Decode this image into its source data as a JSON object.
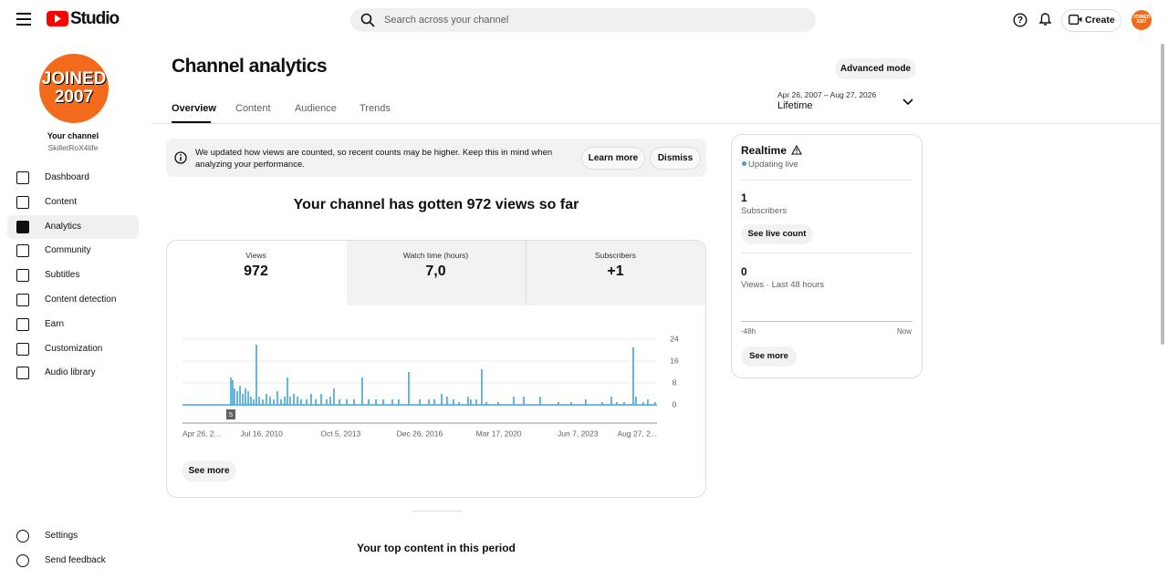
{
  "header": {
    "logo": "Studio",
    "search_placeholder": "Search across your channel",
    "create": "Create"
  },
  "sidebar": {
    "avatar_lines": [
      "JOINED",
      "2007"
    ],
    "channel_label": "Your channel",
    "channel_name": "SkilletRoX4life",
    "nav": [
      "Dashboard",
      "Content",
      "Analytics",
      "Community",
      "Subtitles",
      "Content detection",
      "Earn",
      "Customization",
      "Audio library"
    ],
    "footer": [
      "Settings",
      "Send feedback"
    ]
  },
  "page": {
    "title": "Channel analytics",
    "advanced": "Advanced mode",
    "tabs": [
      "Overview",
      "Content",
      "Audience",
      "Trends"
    ],
    "date_range": "Apr 26, 2007 – Aug 27, 2026",
    "period": "Lifetime"
  },
  "notice": {
    "text_lines": [
      "We updated how views are counted, so recent counts may be higher. Keep this in mind when",
      "analyzing your performance."
    ],
    "learn_more": "Learn more",
    "dismiss": "Dismiss"
  },
  "headline": "Your channel has gotten 972 views so far",
  "metrics": [
    {
      "label": "Views",
      "value": "972"
    },
    {
      "label": "Watch time (hours)",
      "value": "7,0"
    },
    {
      "label": "Subscribers",
      "value": "+1"
    }
  ],
  "chart_data": {
    "type": "bar",
    "color": "#3ea6d8",
    "grid": true,
    "annotation": "5",
    "x": [
      720,
      747,
      774,
      815,
      856,
      896,
      937,
      978,
      1019,
      1059,
      1100,
      1141,
      1195,
      1249,
      1304,
      1358,
      1412,
      1467,
      1521,
      1562,
      1602,
      1657,
      1711,
      1765,
      1847,
      1915,
      1983,
      2064,
      2146,
      2200,
      2254,
      2336,
      2444,
      2553,
      2675,
      2770,
      2879,
      2988,
      3123,
      3218,
      3368,
      3531,
      3667,
      3748,
      3857,
      3938,
      4033,
      4115,
      4251,
      4291,
      4373,
      4454,
      4522,
      4699,
      4930,
      5079,
      5323,
      5595,
      5785,
      6002,
      6247,
      6383,
      6464,
      6573,
      6709,
      6749,
      6858,
      6926,
      7035
    ],
    "values": [
      10,
      9,
      6,
      5,
      7,
      4,
      6,
      5,
      3,
      2,
      22,
      3,
      2,
      4,
      3,
      2,
      5,
      2,
      3,
      10,
      3,
      4,
      3,
      2,
      2,
      4,
      2,
      4,
      2,
      3,
      6,
      2,
      2,
      2,
      10,
      2,
      2,
      2,
      2,
      2,
      12,
      2,
      2,
      2,
      4,
      3,
      2,
      1,
      3,
      2,
      2,
      13,
      1,
      1,
      3,
      3,
      3,
      1,
      1,
      2,
      1,
      3,
      1,
      1,
      21,
      3,
      1,
      2,
      1
    ],
    "xlim": [
      0,
      7063
    ],
    "ylim": [
      0,
      24
    ],
    "yticks": [
      0,
      8,
      16,
      24
    ],
    "xticks": [
      {
        "value": 0,
        "label": "Apr 26, 2..."
      },
      {
        "value": 1177,
        "label": "Jul 16, 2010"
      },
      {
        "value": 2354,
        "label": "Oct 5, 2013"
      },
      {
        "value": 3531,
        "label": "Dec 26, 2016"
      },
      {
        "value": 4708,
        "label": "Mar 17, 2020"
      },
      {
        "value": 5885,
        "label": "Jun 7, 2023"
      },
      {
        "value": 7063,
        "label": "Aug 27, 2..."
      }
    ]
  },
  "see_more": "See more",
  "top_content": "Your top content in this period",
  "realtime": {
    "title": "Realtime",
    "status": "Updating live",
    "subscribers": 1,
    "subscribers_label": "Subscribers",
    "live_count": "See live count",
    "views": 0,
    "views_label": "Views · Last 48 hours",
    "axis_start": "-48h",
    "axis_end": "Now",
    "see_more": "See more"
  }
}
